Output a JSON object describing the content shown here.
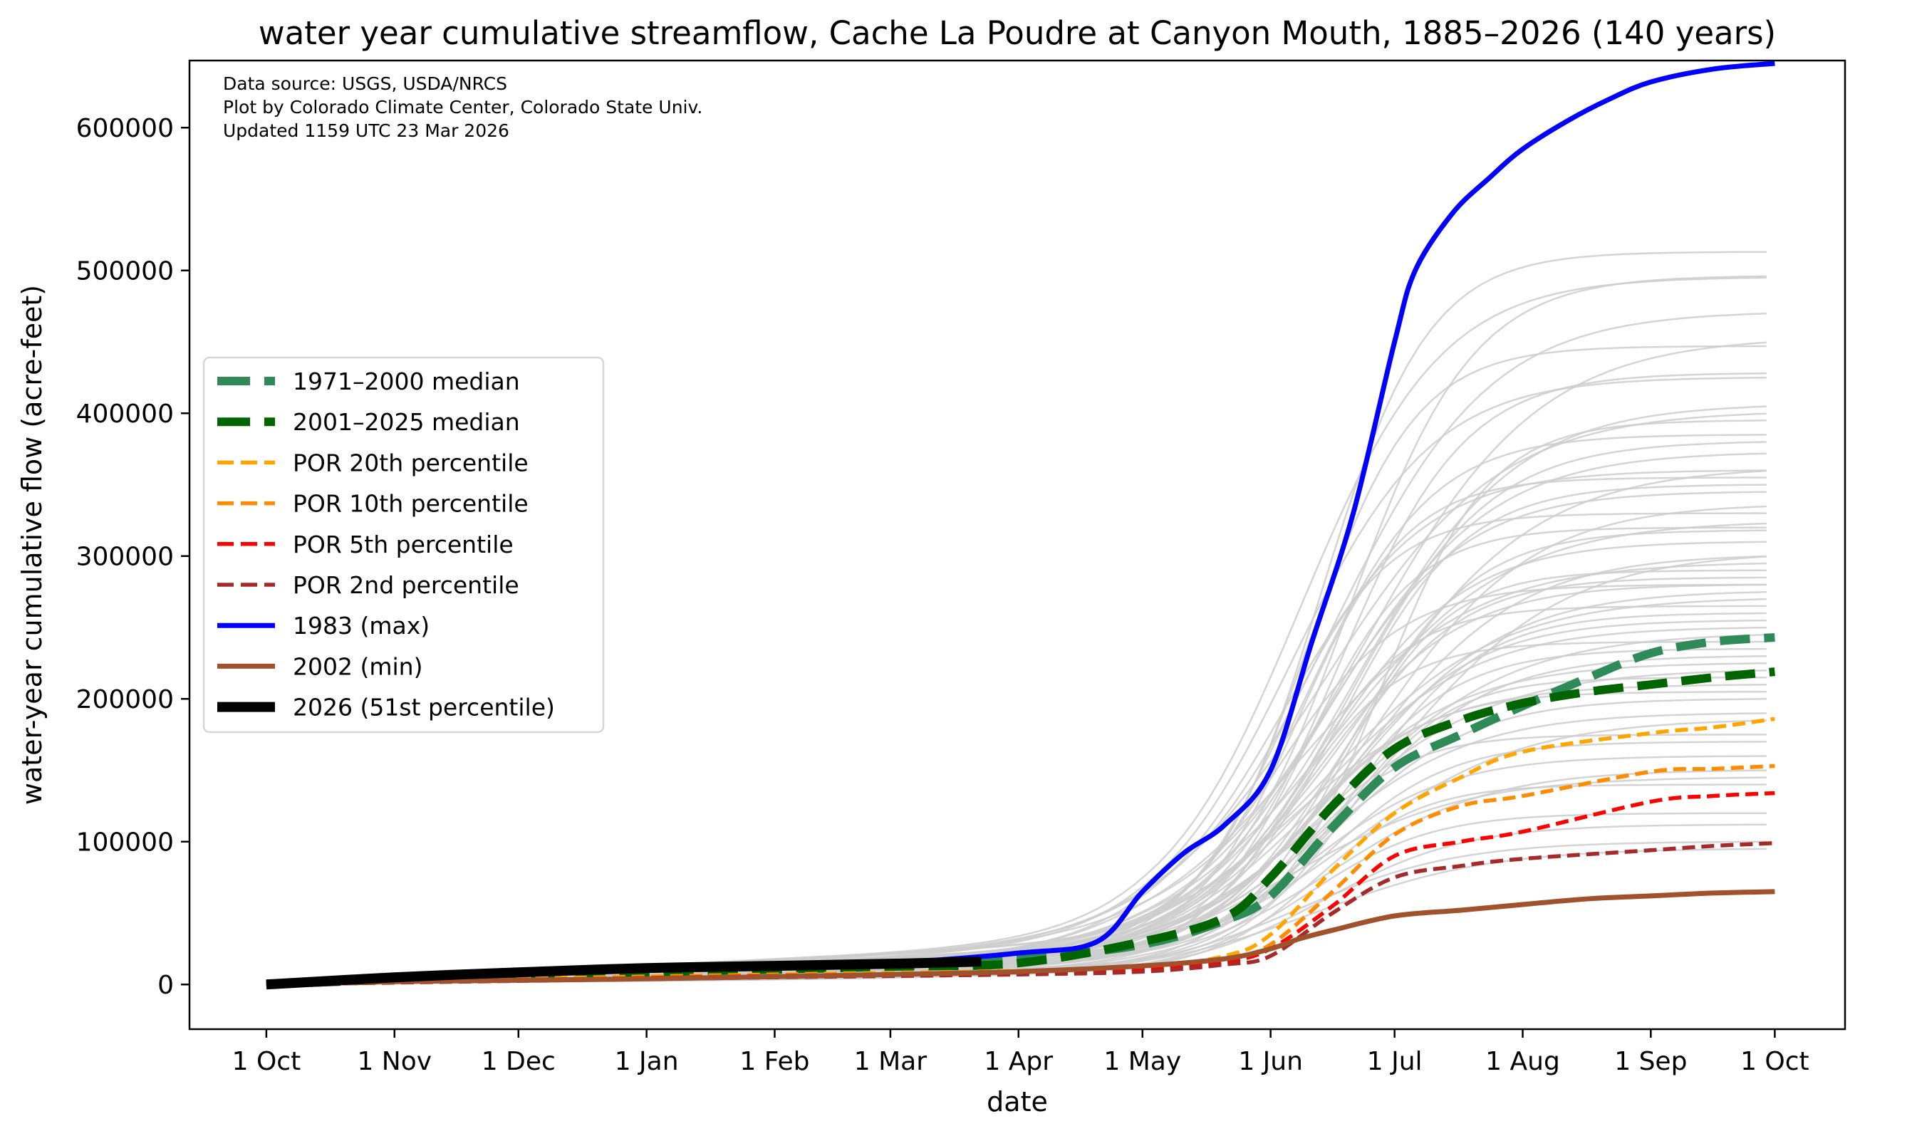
{
  "chart_data": {
    "type": "line",
    "title": "water year cumulative streamflow, Cache La Poudre at Canyon Mouth, 1885–2026 (140 years)",
    "annotations": [
      "Data source: USGS, USDA/NRCS",
      "Plot by Colorado Climate Center, Colorado State Univ.",
      "Updated 1159 UTC 23 Mar 2026"
    ],
    "xlabel": "date",
    "ylabel": "water-year cumulative flow (acre-feet)",
    "x_units": "days since 1 Oct",
    "xlim": [
      -18.6,
      382
    ],
    "ylim": [
      -31300,
      647000
    ],
    "grid": false,
    "legend_placement": "center-left",
    "x_ticks": [
      {
        "day": 0,
        "label": "1 Oct"
      },
      {
        "day": 31,
        "label": "1 Nov"
      },
      {
        "day": 61,
        "label": "1 Dec"
      },
      {
        "day": 92,
        "label": "1 Jan"
      },
      {
        "day": 123,
        "label": "1 Feb"
      },
      {
        "day": 151,
        "label": "1 Mar"
      },
      {
        "day": 182,
        "label": "1 Apr"
      },
      {
        "day": 212,
        "label": "1 May"
      },
      {
        "day": 243,
        "label": "1 Jun"
      },
      {
        "day": 273,
        "label": "1 Jul"
      },
      {
        "day": 304,
        "label": "1 Aug"
      },
      {
        "day": 335,
        "label": "1 Sep"
      },
      {
        "day": 365,
        "label": "1 Oct"
      }
    ],
    "y_ticks": [
      {
        "value": 0,
        "label": "0"
      },
      {
        "value": 100000,
        "label": "100000"
      },
      {
        "value": 200000,
        "label": "200000"
      },
      {
        "value": 300000,
        "label": "300000"
      },
      {
        "value": 400000,
        "label": "400000"
      },
      {
        "value": 500000,
        "label": "500000"
      },
      {
        "value": 600000,
        "label": "600000"
      }
    ],
    "gray_years": {
      "color": "#cccccc",
      "note_fields": [
        "total_acre_feet",
        "runoff_center_day"
      ],
      "values": [
        [
          513000,
          255
        ],
        [
          496000,
          262
        ],
        [
          495000,
          250
        ],
        [
          470000,
          258
        ],
        [
          450000,
          266
        ],
        [
          447000,
          252
        ],
        [
          428000,
          260
        ],
        [
          425000,
          248
        ],
        [
          405000,
          264
        ],
        [
          400000,
          256
        ],
        [
          395000,
          270
        ],
        [
          385000,
          252
        ],
        [
          380000,
          262
        ],
        [
          372000,
          258
        ],
        [
          360000,
          266
        ],
        [
          355000,
          250
        ],
        [
          350000,
          260
        ],
        [
          345000,
          255
        ],
        [
          335000,
          268
        ],
        [
          323000,
          258
        ],
        [
          320000,
          252
        ],
        [
          318000,
          262
        ],
        [
          310000,
          256
        ],
        [
          300000,
          265
        ],
        [
          295000,
          250
        ],
        [
          290000,
          260
        ],
        [
          285000,
          258
        ],
        [
          280000,
          254
        ],
        [
          275000,
          262
        ],
        [
          270000,
          256
        ],
        [
          265000,
          250
        ],
        [
          260000,
          264
        ],
        [
          255000,
          258
        ],
        [
          250000,
          254
        ],
        [
          245000,
          260
        ],
        [
          240000,
          248
        ],
        [
          235000,
          258
        ],
        [
          230000,
          262
        ],
        [
          225000,
          252
        ],
        [
          220000,
          256
        ],
        [
          215000,
          260
        ],
        [
          205000,
          250
        ],
        [
          200000,
          258
        ],
        [
          190000,
          254
        ],
        [
          185000,
          262
        ],
        [
          175000,
          250
        ],
        [
          170000,
          256
        ],
        [
          160000,
          252
        ],
        [
          150000,
          258
        ],
        [
          145000,
          248
        ],
        [
          140000,
          254
        ],
        [
          120000,
          252
        ],
        [
          112000,
          256
        ],
        [
          100000,
          250
        ],
        [
          95000,
          254
        ],
        [
          330000,
          245
        ],
        [
          280000,
          244
        ],
        [
          360000,
          246
        ],
        [
          210000,
          246
        ],
        [
          300000,
          272
        ]
      ]
    },
    "series": [
      {
        "name": "1971–2000 median",
        "color": "#2e8b57",
        "style": "dashed-wide",
        "x": [
          0,
          31,
          61,
          92,
          123,
          151,
          182,
          212,
          232,
          243,
          258,
          273,
          289,
          304,
          320,
          335,
          350,
          365
        ],
        "y": [
          0,
          3500,
          6500,
          9000,
          11000,
          13500,
          18000,
          28000,
          45000,
          62000,
          110000,
          152000,
          175000,
          195000,
          215000,
          232000,
          240000,
          243000
        ]
      },
      {
        "name": "2001–2025 median",
        "color": "#006400",
        "style": "dashed-wide",
        "x": [
          0,
          31,
          61,
          92,
          123,
          151,
          182,
          212,
          232,
          243,
          258,
          273,
          289,
          304,
          320,
          335,
          350,
          365
        ],
        "y": [
          0,
          3500,
          6000,
          8500,
          10500,
          12500,
          15000,
          30000,
          47000,
          75000,
          125000,
          165000,
          185000,
          197000,
          205000,
          210000,
          215000,
          219000
        ]
      },
      {
        "name": "POR 20th percentile",
        "color": "#ffa500",
        "style": "dashed",
        "x": [
          0,
          61,
          123,
          182,
          212,
          232,
          243,
          258,
          273,
          289,
          304,
          335,
          350,
          365
        ],
        "y": [
          0,
          4000,
          7000,
          9500,
          12000,
          20000,
          35000,
          80000,
          120000,
          145000,
          163000,
          176000,
          180000,
          186000
        ]
      },
      {
        "name": "POR 10th percentile",
        "color": "#ff8c00",
        "style": "dashed",
        "x": [
          0,
          61,
          123,
          182,
          212,
          232,
          243,
          258,
          273,
          289,
          304,
          335,
          350,
          365
        ],
        "y": [
          0,
          3500,
          6500,
          8500,
          11000,
          18000,
          28000,
          65000,
          105000,
          125000,
          132000,
          149000,
          151000,
          153000
        ]
      },
      {
        "name": "POR 5th percentile",
        "color": "#ff0000",
        "style": "dashed",
        "x": [
          0,
          61,
          123,
          182,
          212,
          232,
          243,
          258,
          273,
          289,
          304,
          335,
          350,
          365
        ],
        "y": [
          0,
          3000,
          6000,
          8000,
          10000,
          16000,
          25000,
          55000,
          90000,
          100000,
          107000,
          128000,
          132000,
          134000
        ]
      },
      {
        "name": "POR 2nd percentile",
        "color": "#a52a2a",
        "style": "dashed",
        "x": [
          0,
          61,
          123,
          182,
          212,
          232,
          243,
          258,
          273,
          289,
          304,
          335,
          350,
          365
        ],
        "y": [
          0,
          2500,
          5000,
          7000,
          9000,
          14000,
          20000,
          50000,
          75000,
          83000,
          88000,
          94000,
          97000,
          99000
        ]
      },
      {
        "name": "1983 (max)",
        "color": "#0000ff",
        "style": "solid",
        "x": [
          0,
          31,
          61,
          92,
          123,
          151,
          182,
          201,
          212,
          222,
          232,
          243,
          253,
          263,
          273,
          278,
          287,
          296,
          304,
          315,
          325,
          335,
          350,
          365
        ],
        "y": [
          0,
          5000,
          8000,
          10000,
          12000,
          15000,
          22000,
          30000,
          65000,
          92000,
          112000,
          150000,
          240000,
          330000,
          450000,
          500000,
          540000,
          565000,
          585000,
          605000,
          620000,
          632000,
          641000,
          645000
        ],
        "width": 7
      },
      {
        "name": "2002 (min)",
        "color": "#a0522d",
        "style": "solid",
        "x": [
          0,
          31,
          61,
          92,
          123,
          151,
          182,
          212,
          232,
          243,
          250,
          258,
          273,
          289,
          304,
          320,
          335,
          350,
          365
        ],
        "y": [
          0,
          2000,
          3000,
          4000,
          5500,
          7000,
          9000,
          13000,
          18000,
          25000,
          32000,
          38000,
          48000,
          52000,
          56000,
          60000,
          62000,
          64000,
          65000
        ],
        "width": 7
      },
      {
        "name": "2026 (51st percentile)",
        "color": "#000000",
        "style": "solid",
        "x": [
          0,
          31,
          61,
          92,
          123,
          151,
          173
        ],
        "y": [
          0,
          5000,
          8500,
          11500,
          13000,
          14500,
          16000
        ],
        "width": 14
      }
    ]
  }
}
